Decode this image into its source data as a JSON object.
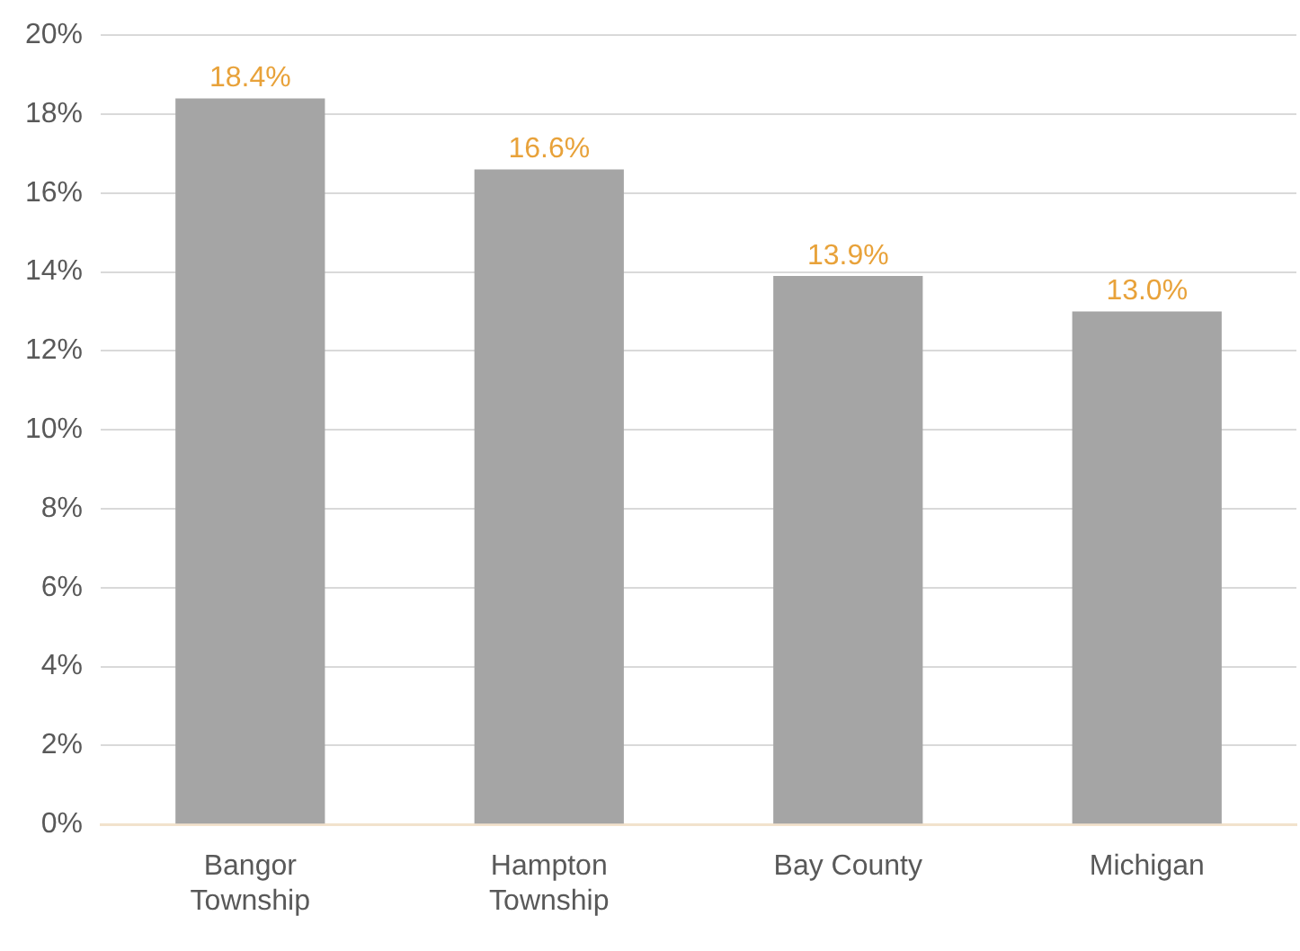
{
  "chart_data": {
    "type": "bar",
    "categories": [
      "Bangor Township",
      "Hampton Township",
      "Bay County",
      "Michigan"
    ],
    "values": [
      18.4,
      16.6,
      13.9,
      13.0
    ],
    "color": "#a5a5a5",
    "value_labels": [
      "18.4%",
      "16.6%",
      "13.9%",
      "13.0%"
    ],
    "ylim": [
      0,
      20
    ],
    "yticks": [
      {
        "value": 0,
        "label": "0%"
      },
      {
        "value": 2,
        "label": "2%"
      },
      {
        "value": 4,
        "label": "4%"
      },
      {
        "value": 6,
        "label": "6%"
      },
      {
        "value": 8,
        "label": "8%"
      },
      {
        "value": 10,
        "label": "10%"
      },
      {
        "value": 12,
        "label": "12%"
      },
      {
        "value": 14,
        "label": "14%"
      },
      {
        "value": 16,
        "label": "16%"
      },
      {
        "value": 18,
        "label": "18%"
      },
      {
        "value": 20,
        "label": "20%"
      }
    ],
    "grid": "y",
    "legend": false
  }
}
